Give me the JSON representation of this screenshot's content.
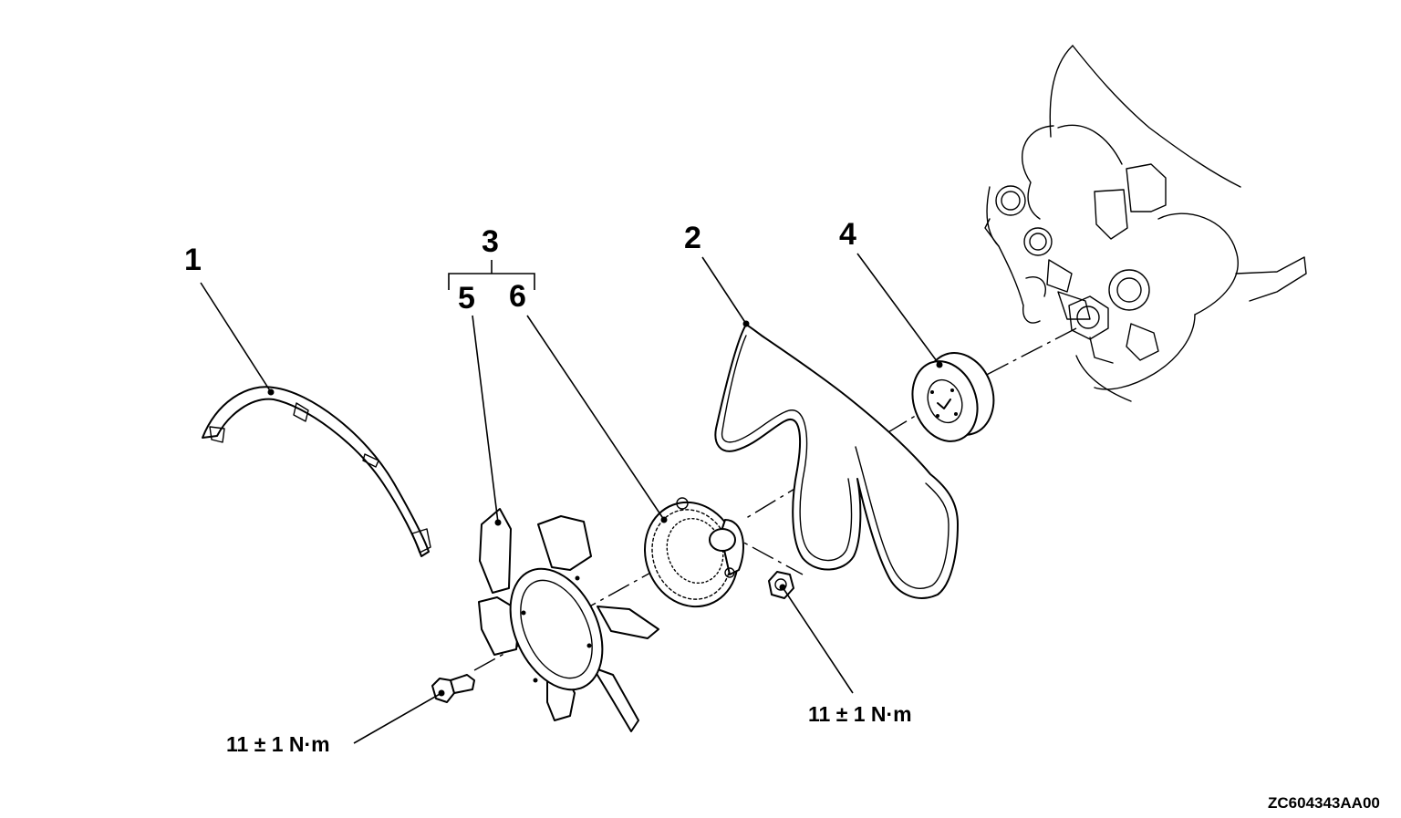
{
  "callouts": {
    "c1": "1",
    "c2": "2",
    "c3": "3",
    "c4": "4",
    "c5": "5",
    "c6": "6"
  },
  "torque": {
    "bolt": "11 ± 1 N·m",
    "nut": "11 ± 1 N·m"
  },
  "figure_code": "ZC604343AA00"
}
